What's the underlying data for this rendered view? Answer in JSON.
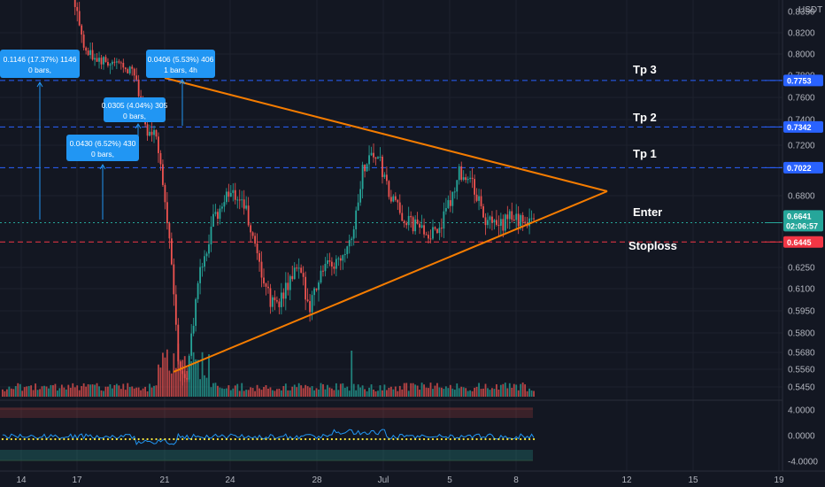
{
  "chart_data": {
    "type": "candlestick",
    "quote": "USDT",
    "xlabels": [
      "14",
      "17",
      "21",
      "24",
      "28",
      "Jul",
      "5",
      "8",
      "12",
      "15",
      "19"
    ],
    "yticks": [
      0.82,
      0.8,
      0.76,
      0.74,
      0.72,
      0.68,
      0.625,
      0.61,
      0.595,
      0.58,
      0.568,
      0.556,
      0.545
    ],
    "price_labels": {
      "q_0.8350": "0.8350",
      "q_0.8200": "0.8200",
      "q_0.8000": "0.8000",
      "q_0.7800": "0.7800",
      "q_0.7600": "0.7600",
      "q_0.7400": "0.7400",
      "q_0.7200": "0.7200",
      "q_0.6800": "0.6800",
      "q_0.6250": "0.6250",
      "q_0.6100": "0.6100",
      "q_0.5950": "0.5950",
      "q_0.5800": "0.5800",
      "q_0.5680": "0.5680",
      "q_0.5560": "0.5560",
      "q_0.5450": "0.5450"
    },
    "levels": [
      {
        "name": "Tp 3",
        "price": "0.7753",
        "color": "#2962ff",
        "style": "dashed"
      },
      {
        "name": "Tp 2",
        "price": "0.7342",
        "color": "#2962ff",
        "style": "dashed"
      },
      {
        "name": "Tp 1",
        "price": "0.7022",
        "color": "#2962ff",
        "style": "dashed"
      },
      {
        "name": "Enter",
        "price": "0.6593",
        "color": "#26a69a",
        "style": "dotted"
      },
      {
        "name": "Stoploss",
        "price": "0.6445",
        "color": "#f23645",
        "style": "dashed"
      }
    ],
    "current": {
      "price": "0.6641",
      "countdown": "02:06:57",
      "color": "#26a69a"
    },
    "measures": [
      {
        "line1": "0.1146 (17.37%) 1146",
        "line2": "0 bars,"
      },
      {
        "line1": "0.0406 (5.53%) 406",
        "line2": "1 bars, 4h"
      },
      {
        "line1": "0.0305 (4.04%) 305",
        "line2": "0 bars,"
      },
      {
        "line1": "0.0430 (6.52%) 430",
        "line2": "0 bars,"
      }
    ],
    "oscillator": {
      "ticks": [
        "4.0000",
        "0.0000",
        "-4.0000"
      ]
    },
    "colors": {
      "up": "#26a69a",
      "down": "#ef5350",
      "triangle": "#f57c00",
      "measure": "#2196f3",
      "osc_line": "#2196f3",
      "osc_dots": "#ffeb3b"
    }
  }
}
